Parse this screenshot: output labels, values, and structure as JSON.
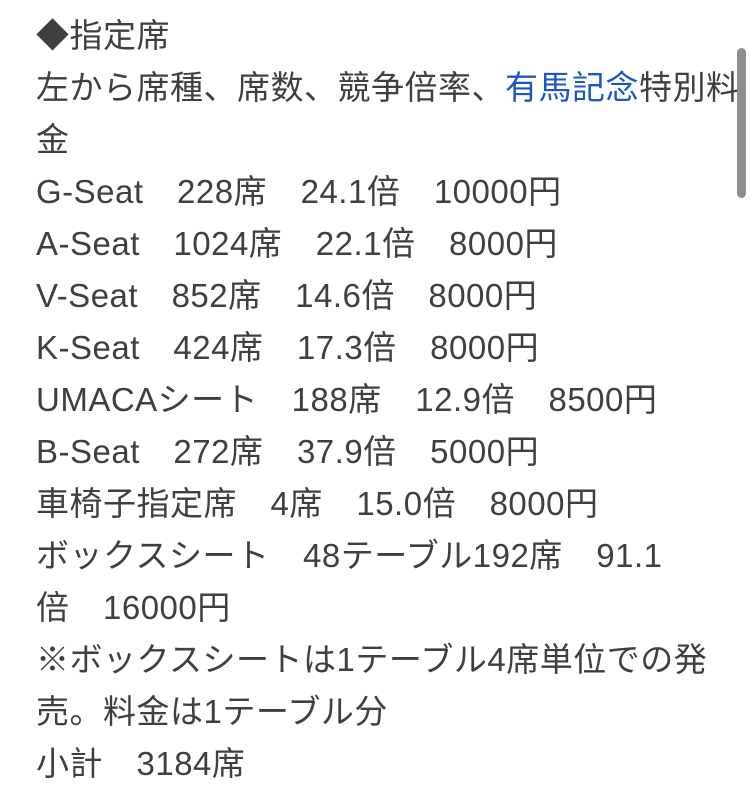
{
  "colors": {
    "background": "#ffffff",
    "text": "#3f3f3f",
    "link": "#1b55c8",
    "scrollbar_thumb": "#8e8e8e"
  },
  "content": {
    "heading": "◆指定席",
    "description_before": "左から席種、席数、競争倍率、",
    "description_link": "有馬記念",
    "description_after": "特別料",
    "description_wrap": "金",
    "lines": [
      "G-Seat　228席　24.1倍　10000円",
      "A-Seat　1024席　22.1倍　8000円",
      "V-Seat　852席　14.6倍　8000円",
      "K-Seat　424席　17.3倍　8000円",
      "UMACAシート　188席　12.9倍　8500円",
      "B-Seat　272席　37.9倍　5000円",
      "車椅子指定席　4席　15.0倍　8000円",
      "ボックスシート　48テーブル192席　91.1",
      "倍　16000円",
      "※ボックスシートは1テーブル4席単位での発",
      "売。料金は1テーブル分",
      "小計　3184席"
    ]
  }
}
